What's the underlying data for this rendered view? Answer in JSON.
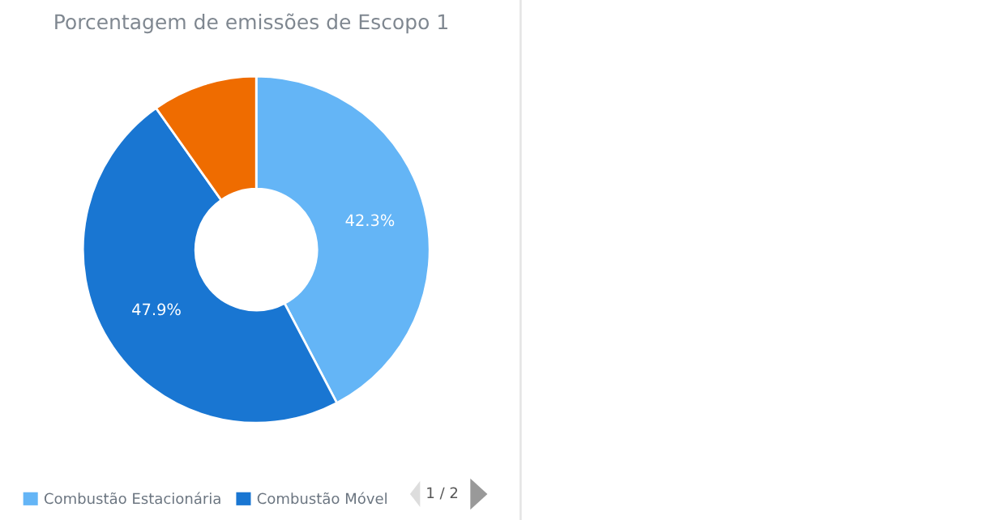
{
  "chart_data": {
    "type": "donut",
    "title": "Porcentagem de emissões de Escopo 1",
    "categories": [
      "Combustão Estacionária",
      "Combustão Móvel",
      null
    ],
    "values": [
      42.3,
      47.9,
      9.8
    ],
    "value_labels": [
      "42.3%",
      "47.9%",
      null
    ],
    "colors": [
      "#64b5f6",
      "#1976d2",
      "#ef6c00"
    ],
    "legend": "bottom",
    "annotations": [
      "1 / 2"
    ]
  }
}
